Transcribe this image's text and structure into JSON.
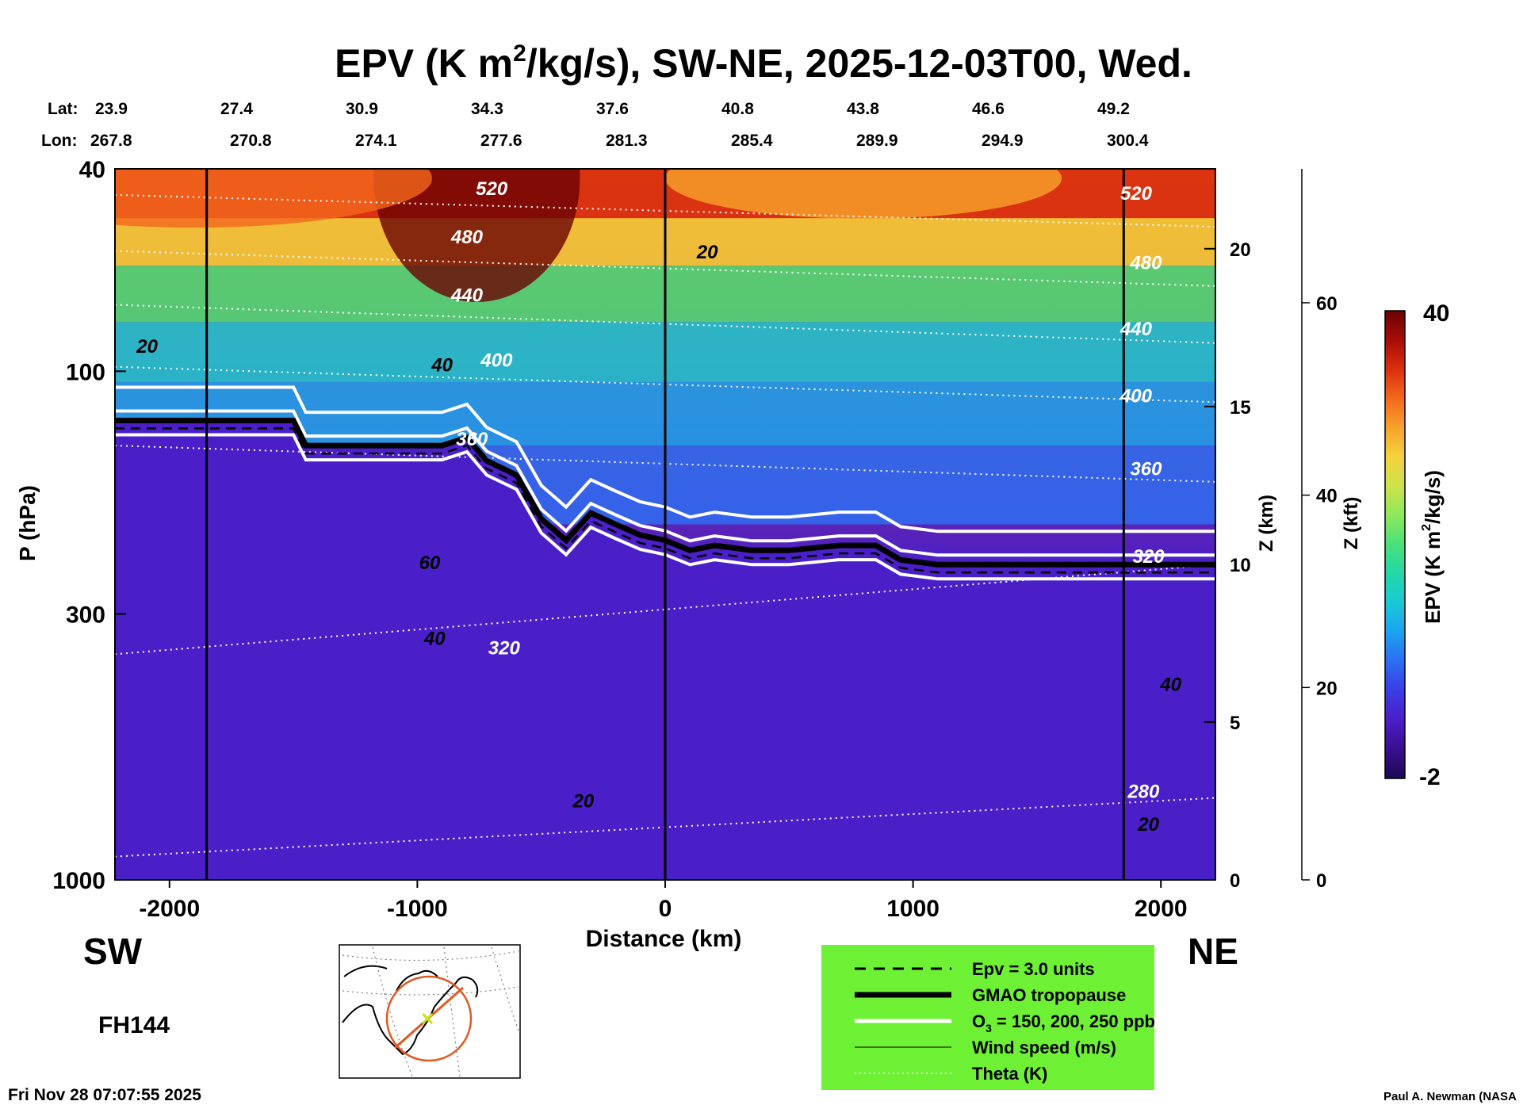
{
  "chart_data": {
    "type": "heatmap",
    "title_main": "EPV (K m",
    "title_sup": "2",
    "title_rest": "/kg/s), SW-NE, 2025-12-03T00, Wed.",
    "lat_label": "Lat:",
    "lon_label": "Lon:",
    "lat_ticks": [
      "23.9",
      "27.4",
      "30.9",
      "34.3",
      "37.6",
      "40.8",
      "43.8",
      "46.6",
      "49.2"
    ],
    "lon_ticks": [
      "267.8",
      "270.8",
      "274.1",
      "277.6",
      "281.3",
      "285.4",
      "289.9",
      "294.9",
      "300.4"
    ],
    "lat_lon_distance_km": [
      -2200,
      -1700,
      -1200,
      -700,
      -200,
      300,
      800,
      1300,
      1800
    ],
    "xlabel": "Distance (km)",
    "xlim": [
      -2220,
      2220
    ],
    "x_ticks": [
      -2000,
      -1000,
      0,
      1000,
      2000
    ],
    "x_tick_labels": [
      "-2000",
      "-1000",
      "0",
      "1000",
      "2000"
    ],
    "ylabel": "P (hPa)",
    "y_scale": "log",
    "ylim_hPa": [
      1000,
      40
    ],
    "y_ticks_hPa": [
      40,
      100,
      300,
      1000
    ],
    "y_tick_labels": [
      "40",
      "100",
      "300",
      "1000"
    ],
    "z_km_ticks": [
      0,
      5,
      10,
      15,
      20
    ],
    "z_km_label": "Z (km)",
    "z_kft_ticks": [
      0,
      20,
      40,
      60
    ],
    "z_kft_label": "Z (kft)",
    "vertical_markers_km": [
      -1850,
      0,
      1850
    ],
    "left_label": "SW",
    "right_label": "NE",
    "forecast_hour": "FH144",
    "timestamp": "Fri Nov 28 07:07:55 2025",
    "credit": "Paul A. Newman (NASA",
    "colorbar": {
      "label_main": "EPV (K m",
      "label_sup": "2",
      "label_rest": "/kg/s)",
      "min": -2,
      "max": 40,
      "min_label": "-2",
      "max_label": "40",
      "colors": [
        "#1a0a55",
        "#3a0f8f",
        "#4b1fc8",
        "#3c3ce6",
        "#2d6df2",
        "#1aa3f0",
        "#19c9d6",
        "#22d8a8",
        "#49e07a",
        "#8ee85a",
        "#cde34a",
        "#f4d23a",
        "#f7a32a",
        "#f2681c",
        "#d9300f",
        "#a80c08",
        "#6b0303"
      ]
    },
    "legend": [
      {
        "label": "Epv = 3.0 units",
        "style": "dashed-black"
      },
      {
        "label": "GMAO tropopause",
        "style": "thick-black"
      },
      {
        "label_main": "O",
        "label_sub": "3",
        "label_rest": " = 150, 200, 250 ppb",
        "style": "double-white"
      },
      {
        "label": "Wind speed (m/s)",
        "style": "thin-black"
      },
      {
        "label": "Theta (K)",
        "style": "dotted-white"
      }
    ],
    "legend_bg": "#6ef034",
    "tropopause": {
      "x_km": [
        -2220,
        -1500,
        -1450,
        -900,
        -800,
        -720,
        -600,
        -500,
        -400,
        -300,
        -200,
        -100,
        0,
        100,
        200,
        350,
        500,
        700,
        850,
        950,
        1100,
        1500,
        1800,
        2220
      ],
      "p_hPa": [
        125,
        125,
        140,
        140,
        135,
        150,
        160,
        195,
        215,
        190,
        200,
        210,
        215,
        225,
        220,
        225,
        225,
        220,
        220,
        235,
        240,
        240,
        240,
        240
      ]
    },
    "ozone_contours_ppb": [
      150,
      200,
      250
    ],
    "theta_contour_labels": [
      {
        "value": "520",
        "x_km": -700,
        "p_hPa": 45
      },
      {
        "value": "480",
        "x_km": -800,
        "p_hPa": 56
      },
      {
        "value": "440",
        "x_km": -800,
        "p_hPa": 73
      },
      {
        "value": "400",
        "x_km": -680,
        "p_hPa": 98
      },
      {
        "value": "360",
        "x_km": -780,
        "p_hPa": 140
      },
      {
        "value": "320",
        "x_km": -650,
        "p_hPa": 360
      },
      {
        "value": "520",
        "x_km": 1900,
        "p_hPa": 46
      },
      {
        "value": "480",
        "x_km": 1940,
        "p_hPa": 63
      },
      {
        "value": "440",
        "x_km": 1900,
        "p_hPa": 85
      },
      {
        "value": "400",
        "x_km": 1900,
        "p_hPa": 115
      },
      {
        "value": "360",
        "x_km": 1940,
        "p_hPa": 160
      },
      {
        "value": "320",
        "x_km": 1950,
        "p_hPa": 238
      },
      {
        "value": "280",
        "x_km": 1930,
        "p_hPa": 690
      }
    ],
    "wind_contour_labels": [
      {
        "value": "20",
        "x_km": -2090,
        "p_hPa": 92
      },
      {
        "value": "40",
        "x_km": -900,
        "p_hPa": 100
      },
      {
        "value": "60",
        "x_km": -950,
        "p_hPa": 245
      },
      {
        "value": "40",
        "x_km": -930,
        "p_hPa": 345
      },
      {
        "value": "20",
        "x_km": -330,
        "p_hPa": 720
      },
      {
        "value": "20",
        "x_km": 170,
        "p_hPa": 60
      },
      {
        "value": "40",
        "x_km": 2040,
        "p_hPa": 425
      },
      {
        "value": "20",
        "x_km": 1950,
        "p_hPa": 800
      }
    ]
  }
}
